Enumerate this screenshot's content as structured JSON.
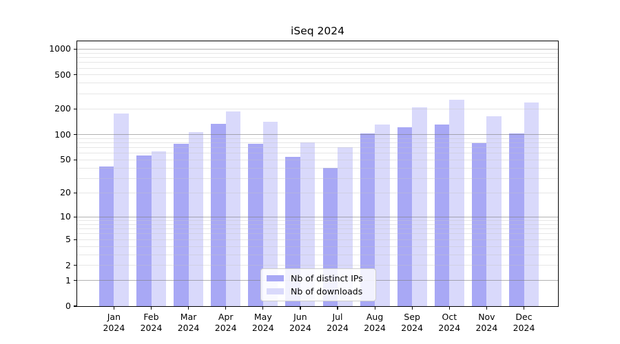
{
  "chart_data": {
    "type": "bar",
    "title": "iSeq 2024",
    "year_label": "2024",
    "categories": [
      "Jan",
      "Feb",
      "Mar",
      "Apr",
      "May",
      "Jun",
      "Jul",
      "Aug",
      "Sep",
      "Oct",
      "Nov",
      "Dec"
    ],
    "series": [
      {
        "name": "Nb of distinct IPs",
        "color": "#a8a8f5",
        "values": [
          42,
          57,
          78,
          134,
          78,
          54,
          40,
          103,
          122,
          130,
          79,
          103
        ]
      },
      {
        "name": "Nb of downloads",
        "color": "#d9d9fb",
        "values": [
          176,
          63,
          107,
          185,
          140,
          80,
          71,
          130,
          210,
          256,
          163,
          236
        ]
      }
    ],
    "xlabel": "",
    "ylabel": "",
    "yaxis": {
      "scale": "log1p",
      "tick_labels": [
        0,
        1,
        2,
        5,
        10,
        20,
        50,
        100,
        200,
        500,
        1000
      ],
      "ylim": [
        0,
        1236
      ]
    },
    "grid": {
      "major_lines": [
        1,
        10,
        100,
        1000
      ],
      "minor_multiples": [
        2,
        3,
        4,
        5,
        6,
        7,
        8,
        9
      ],
      "major_color": "#b0b0b0",
      "minor_color": "#e4e4e4",
      "drawn_over_bars": true
    },
    "legend": {
      "position": "lower center",
      "entries": [
        "Nb of distinct IPs",
        "Nb of downloads"
      ]
    }
  }
}
